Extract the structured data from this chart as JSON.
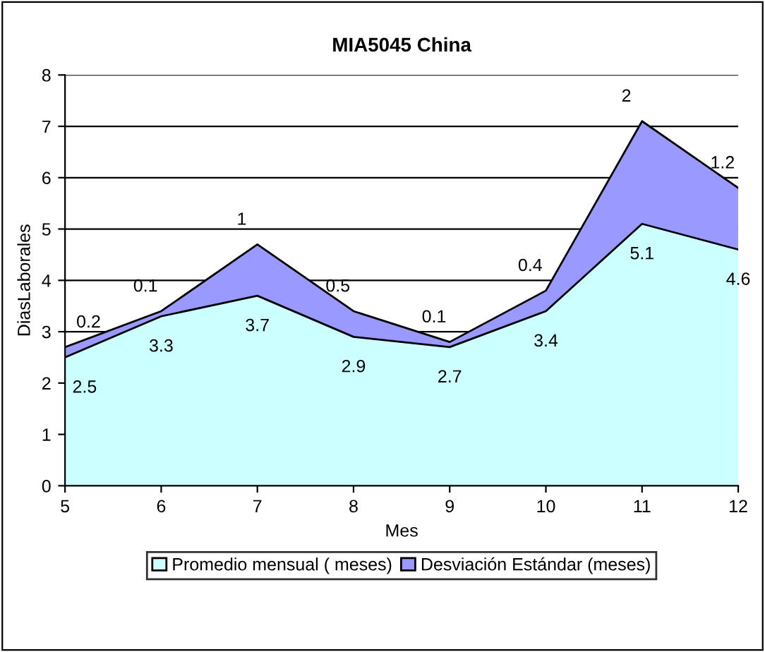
{
  "chart_data": {
    "type": "area",
    "stacked": true,
    "title": "MIA5045 China",
    "xlabel": "Mes",
    "ylabel": "DiasLaborales",
    "x": [
      5,
      6,
      7,
      8,
      9,
      10,
      11,
      12
    ],
    "series": [
      {
        "name": "Promedio mensual ( meses)",
        "color": "#ccffff",
        "values": [
          2.5,
          3.3,
          3.7,
          2.9,
          2.7,
          3.4,
          5.1,
          4.6
        ]
      },
      {
        "name": "Desviación Estándar (meses)",
        "color": "#9999ff",
        "values": [
          0.2,
          0.1,
          1,
          0.5,
          0.1,
          0.4,
          2,
          1.2
        ]
      }
    ],
    "xlim": [
      5,
      12
    ],
    "xticks": [
      5,
      6,
      7,
      8,
      9,
      10,
      11,
      12
    ],
    "ylim": [
      0,
      8
    ],
    "yticks": [
      0,
      1,
      2,
      3,
      4,
      5,
      6,
      7,
      8
    ],
    "grid": "y",
    "legend": "bottom",
    "data_labels": true
  }
}
